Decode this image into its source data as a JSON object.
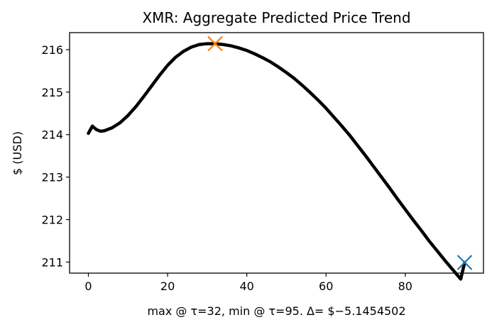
{
  "chart_data": {
    "type": "line",
    "title": "XMR: Aggregate Predicted Price Trend",
    "xlabel": "max @ τ=32, min @ τ=95. Δ= $−5.1454502",
    "ylabel": "$ (USD)",
    "xlim": [
      -4.75,
      99.75
    ],
    "ylim": [
      210.74,
      216.4
    ],
    "xticks": [
      0,
      20,
      40,
      60,
      80
    ],
    "xtick_labels": [
      "0",
      "20",
      "40",
      "60",
      "80"
    ],
    "yticks": [
      211,
      212,
      213,
      214,
      215,
      216
    ],
    "ytick_labels": [
      "211",
      "212",
      "213",
      "214",
      "215",
      "216"
    ],
    "grid": false,
    "series": [
      {
        "color": "#000000",
        "x": [
          0,
          1,
          2,
          3,
          4,
          6,
          8,
          10,
          12,
          14,
          16,
          18,
          20,
          22,
          24,
          26,
          28,
          30,
          32,
          34,
          36,
          38,
          40,
          42,
          44,
          46,
          48,
          50,
          52,
          54,
          56,
          58,
          60,
          62,
          64,
          66,
          68,
          70,
          72,
          74,
          76,
          78,
          80,
          82,
          84,
          86,
          88,
          90,
          92,
          94,
          95
        ],
        "values": [
          214.03,
          214.2,
          214.12,
          214.08,
          214.09,
          214.16,
          214.28,
          214.45,
          214.66,
          214.9,
          215.15,
          215.4,
          215.63,
          215.82,
          215.96,
          216.06,
          216.12,
          216.14,
          216.14,
          216.12,
          216.09,
          216.04,
          215.98,
          215.9,
          215.81,
          215.71,
          215.59,
          215.46,
          215.32,
          215.16,
          214.99,
          214.81,
          214.62,
          214.41,
          214.2,
          213.98,
          213.74,
          213.5,
          213.25,
          213.0,
          212.75,
          212.49,
          212.24,
          211.99,
          211.75,
          211.5,
          211.27,
          211.04,
          210.82,
          210.6,
          210.99
        ]
      }
    ],
    "markers": [
      {
        "x": 32,
        "y": 216.14,
        "symbol": "x",
        "color": "#ff7f0e"
      },
      {
        "x": 95,
        "y": 210.99,
        "symbol": "x",
        "color": "#1f77b4"
      }
    ]
  }
}
